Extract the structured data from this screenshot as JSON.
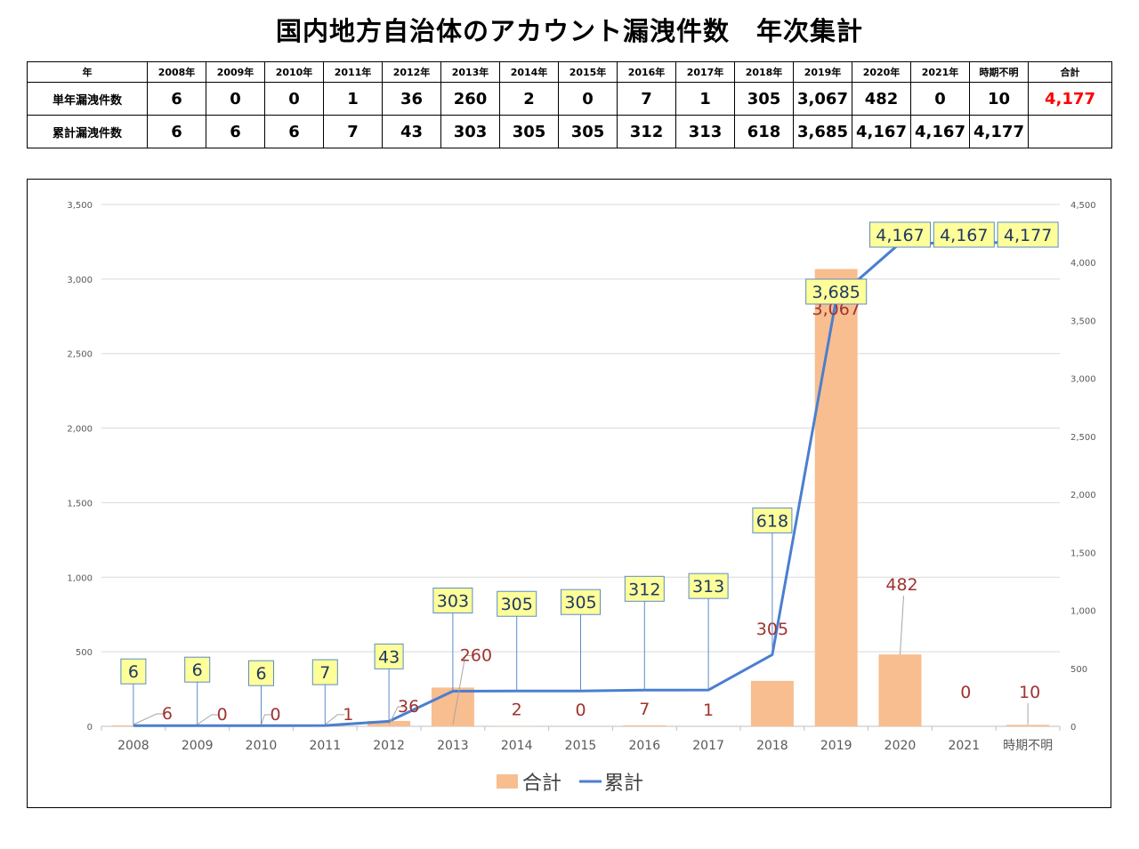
{
  "title": "国内地方自治体のアカウント漏洩件数　年次集計",
  "table": {
    "headers": [
      "年",
      "2008年",
      "2009年",
      "2010年",
      "2011年",
      "2012年",
      "2013年",
      "2014年",
      "2015年",
      "2016年",
      "2017年",
      "2018年",
      "2019年",
      "2020年",
      "2021年",
      "時期不明",
      "合計"
    ],
    "rows": [
      {
        "label": "単年漏洩件数",
        "cells": [
          "6",
          "0",
          "0",
          "1",
          "36",
          "260",
          "2",
          "0",
          "7",
          "1",
          "305",
          "3,067",
          "482",
          "0",
          "10",
          "4,177"
        ]
      },
      {
        "label": "累計漏洩件数",
        "cells": [
          "6",
          "6",
          "6",
          "7",
          "43",
          "303",
          "305",
          "305",
          "312",
          "313",
          "618",
          "3,685",
          "4,167",
          "4,167",
          "4,177",
          ""
        ]
      }
    ]
  },
  "chart_data": {
    "type": "bar+line",
    "categories": [
      "2008",
      "2009",
      "2010",
      "2011",
      "2012",
      "2013",
      "2014",
      "2015",
      "2016",
      "2017",
      "2018",
      "2019",
      "2020",
      "2021",
      "時期不明"
    ],
    "series": [
      {
        "name": "合計",
        "type": "bar",
        "axis": "left",
        "values": [
          6,
          0,
          0,
          1,
          36,
          260,
          2,
          0,
          7,
          1,
          305,
          3067,
          482,
          0,
          10
        ],
        "labels": [
          "6",
          "0",
          "0",
          "1",
          "36",
          "260",
          "2",
          "0",
          "7",
          "1",
          "305",
          "3,067",
          "482",
          "0",
          "10"
        ]
      },
      {
        "name": "累計",
        "type": "line",
        "axis": "right",
        "values": [
          6,
          6,
          6,
          7,
          43,
          303,
          305,
          305,
          312,
          313,
          618,
          3685,
          4167,
          4167,
          4177
        ],
        "labels": [
          "6",
          "6",
          "6",
          "7",
          "43",
          "303",
          "305",
          "305",
          "312",
          "313",
          "618",
          "3,685",
          "4,167",
          "4,167",
          "4,177"
        ]
      }
    ],
    "left_axis": {
      "ylim": [
        0,
        3500
      ],
      "ticks": [
        "0",
        "500",
        "1,000",
        "1,500",
        "2,000",
        "2,500",
        "3,000",
        "3,500"
      ]
    },
    "right_axis": {
      "ylim": [
        0,
        4500
      ],
      "ticks": [
        "0",
        "500",
        "1,000",
        "1,500",
        "2,000",
        "2,500",
        "3,000",
        "3,500",
        "4,000",
        "4,500"
      ]
    },
    "grid": true,
    "legend_position": "bottom",
    "colors": {
      "bar": "#f8be8f",
      "line": "#4a7fd0",
      "label_box": "#ffff99",
      "bar_label": "#a0332f",
      "line_label": "#1f3864",
      "total": "#ff0000"
    }
  }
}
